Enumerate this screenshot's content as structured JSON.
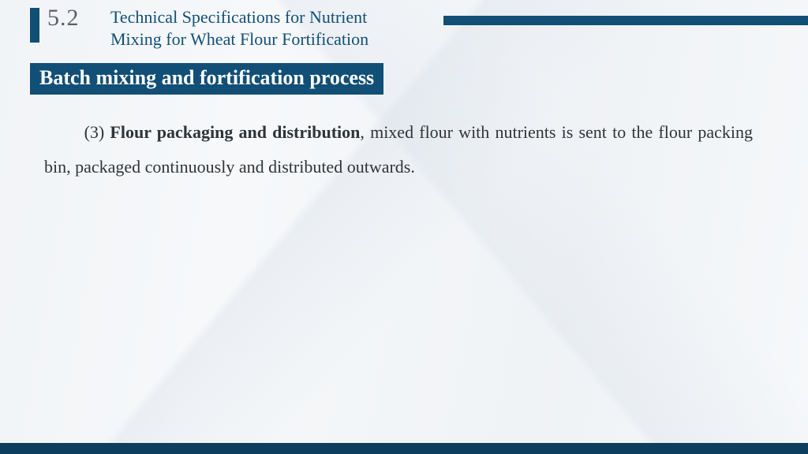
{
  "colors": {
    "brand": "#114f76",
    "brand_dark": "#0e3e5e",
    "title_text": "#124f77",
    "subtitle_bg": "#114f76",
    "subtitle_text": "#ffffff",
    "body_text": "#303436",
    "sec_number": "#5a5f63"
  },
  "header": {
    "section_number": "5.2",
    "title": "Technical Specifications for Nutrient Mixing for Wheat Flour Fortification"
  },
  "subtitle": "Batch mixing and fortification process",
  "body": {
    "item_num": "(3)",
    "bold": "Flour packaging and distribution",
    "rest": ", mixed flour with nutrients is sent to the flour packing bin, packaged continuously and distributed outwards."
  }
}
